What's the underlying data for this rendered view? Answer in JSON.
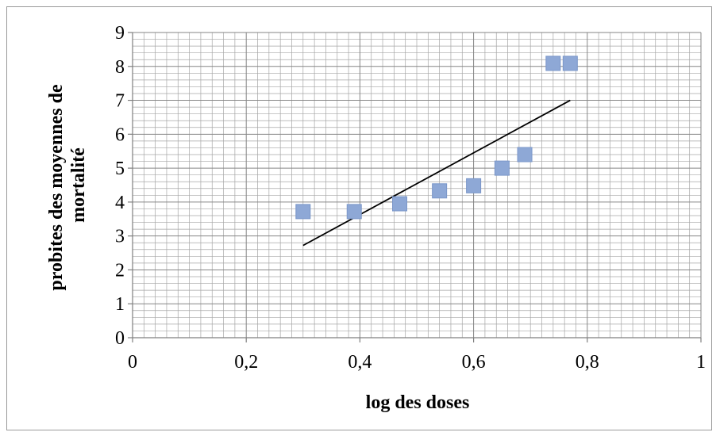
{
  "chart_data": {
    "type": "scatter",
    "title": "",
    "xlabel": "log des doses",
    "ylabel_lines": [
      "probites des moyennes de",
      "mortalité"
    ],
    "xlim": [
      0,
      1
    ],
    "ylim": [
      0,
      9
    ],
    "x_ticks": [
      0,
      0.2,
      0.4,
      0.6,
      0.8,
      1
    ],
    "x_tick_labels": [
      "0",
      "0,2",
      "0,4",
      "0,6",
      "0,8",
      "1"
    ],
    "y_ticks": [
      0,
      1,
      2,
      3,
      4,
      5,
      6,
      7,
      8,
      9
    ],
    "y_tick_labels": [
      "0",
      "1",
      "2",
      "3",
      "4",
      "5",
      "6",
      "7",
      "8",
      "9"
    ],
    "grid": {
      "major": true,
      "minor": true
    },
    "points": {
      "x": [
        0.3,
        0.39,
        0.47,
        0.54,
        0.6,
        0.65,
        0.69,
        0.74,
        0.77
      ],
      "y": [
        3.72,
        3.72,
        3.95,
        4.33,
        4.48,
        5.0,
        5.4,
        8.09,
        8.09
      ],
      "color": "#8ea8d6",
      "edge_color": "#7b97c9",
      "marker": "square"
    },
    "trendline": {
      "x": [
        0.3,
        0.77
      ],
      "y": [
        2.72,
        7.0
      ],
      "color": "#000000"
    }
  }
}
